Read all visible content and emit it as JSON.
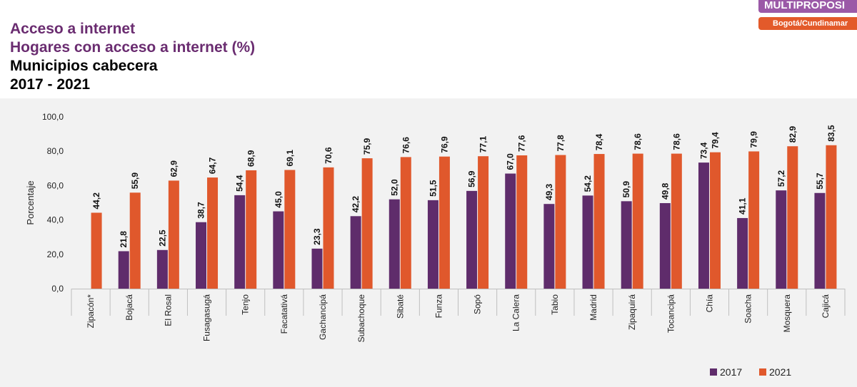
{
  "header": {
    "title_line1": "Acceso a internet",
    "title_line2": "Hogares con acceso a internet (%)",
    "title_line3": "Municipios cabecera",
    "title_line4": "2017 - 2021"
  },
  "logo": {
    "top_text": "MULTIPROPOSI",
    "bottom_text": "Bogotá/Cundinamar"
  },
  "colors": {
    "series_2017": "#5f2c6b",
    "series_2021": "#e0582c",
    "panel_bg": "#f2f2f2"
  },
  "chart_data": {
    "type": "bar",
    "ylabel": "Porcentaje",
    "xlabel": "",
    "ylim": [
      0,
      100
    ],
    "yticks": [
      "0,0",
      "20,0",
      "40,0",
      "60,0",
      "80,0",
      "100,0"
    ],
    "yticks_values": [
      0,
      20,
      40,
      60,
      80,
      100
    ],
    "grid": false,
    "legend_position": "bottom-right",
    "categories": [
      "Zipacón*",
      "Bojacá",
      "El Rosal",
      "Fusagasugá",
      "Tenjo",
      "Facatativá",
      "Gachancipá",
      "Subachoque",
      "Sibaté",
      "Funza",
      "Sopó",
      "La Calera",
      "Tabio",
      "Madrid",
      "Zipaquirá",
      "Tocancipá",
      "Chía",
      "Soacha",
      "Mosquera",
      "Cajicá"
    ],
    "series": [
      {
        "name": "2017",
        "values": [
          null,
          21.8,
          22.5,
          38.7,
          54.4,
          45.0,
          23.3,
          42.2,
          52.0,
          51.5,
          56.9,
          67.0,
          49.3,
          54.2,
          50.9,
          49.8,
          73.4,
          41.1,
          57.2,
          55.7
        ],
        "labels": [
          "",
          "21,8",
          "22,5",
          "38,7",
          "54,4",
          "45,0",
          "23,3",
          "42,2",
          "52,0",
          "51,5",
          "56,9",
          "67,0",
          "49,3",
          "54,2",
          "50,9",
          "49,8",
          "73,4",
          "41,1",
          "57,2",
          "55,7"
        ]
      },
      {
        "name": "2021",
        "values": [
          44.2,
          55.9,
          62.9,
          64.7,
          68.9,
          69.1,
          70.6,
          75.9,
          76.6,
          76.9,
          77.1,
          77.6,
          77.8,
          78.4,
          78.6,
          78.6,
          79.4,
          79.9,
          82.9,
          83.5
        ],
        "labels": [
          "44,2",
          "55,9",
          "62,9",
          "64,7",
          "68,9",
          "69,1",
          "70,6",
          "75,9",
          "76,6",
          "76,9",
          "77,1",
          "77,6",
          "77,8",
          "78,4",
          "78,6",
          "78,6",
          "79,4",
          "79,9",
          "82,9",
          "83,5"
        ]
      }
    ]
  }
}
